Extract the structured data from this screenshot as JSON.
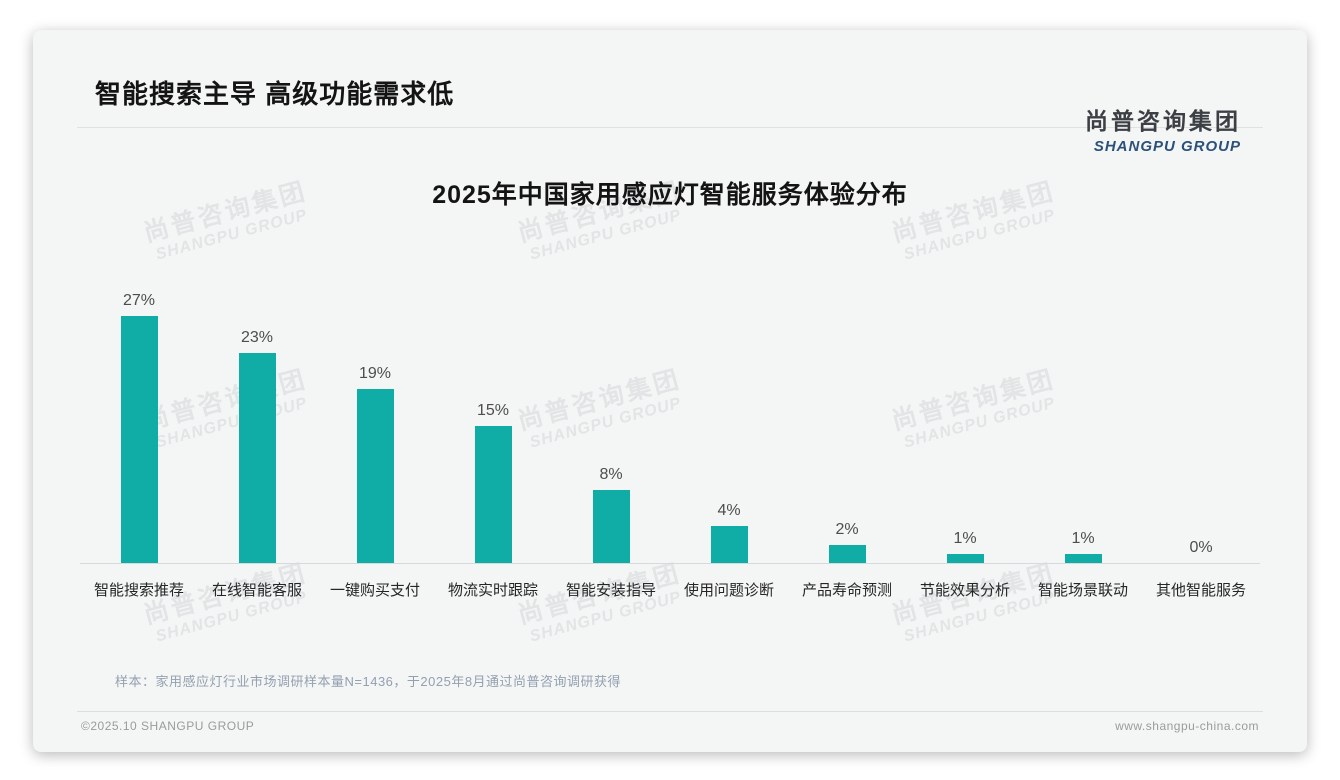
{
  "page": {
    "header_title": "智能搜索主导 高级功能需求低",
    "logo": {
      "cn": "尚普咨询集团",
      "en": "SHANGPU GROUP"
    },
    "watermark": {
      "line1": "尚普咨询集团",
      "line2": "SHANGPU GROUP"
    },
    "sample_note": "样本：家用感应灯行业市场调研样本量N=1436，于2025年8月通过尚普咨询调研获得",
    "footer": {
      "left": "©2025.10 SHANGPU GROUP",
      "right": "www.shangpu-china.com"
    }
  },
  "chart_data": {
    "type": "bar",
    "title": "2025年中国家用感应灯智能服务体验分布",
    "categories": [
      "智能搜索推荐",
      "在线智能客服",
      "一键购买支付",
      "物流实时跟踪",
      "智能安装指导",
      "使用问题诊断",
      "产品寿命预测",
      "节能效果分析",
      "智能场景联动",
      "其他智能服务"
    ],
    "values": [
      27,
      23,
      19,
      15,
      8,
      4,
      2,
      1,
      1,
      0
    ],
    "value_labels": [
      "27%",
      "23%",
      "19%",
      "15%",
      "8%",
      "4%",
      "2%",
      "1%",
      "1%",
      "0%"
    ],
    "unit": "%",
    "xlabel": "",
    "ylabel": "",
    "ylim": [
      0,
      30
    ],
    "grid": false,
    "legend": "none",
    "bar_color": "#10ada6"
  }
}
